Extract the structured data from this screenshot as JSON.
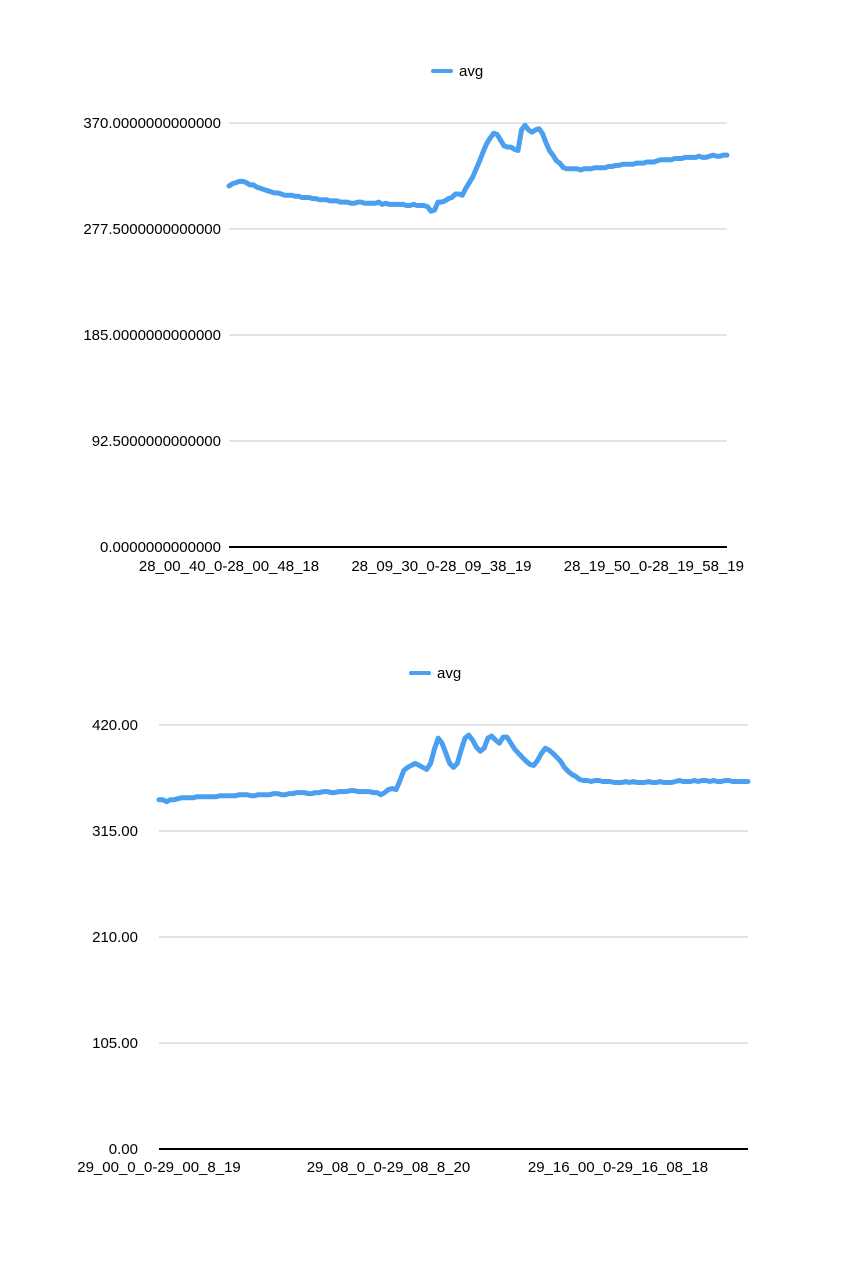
{
  "chart_data": [
    {
      "type": "line",
      "title": "",
      "xlabel": "",
      "ylabel": "",
      "legend": {
        "position": "top-center",
        "entries": [
          "avg"
        ]
      },
      "grid": true,
      "ylim": [
        0,
        370
      ],
      "yticks": [
        "0.0000000000000",
        "92.5000000000000",
        "185.0000000000000",
        "277.5000000000000",
        "370.0000000000000"
      ],
      "ytick_values": [
        0,
        92.5,
        185,
        277.5,
        370
      ],
      "xtick_labels": [
        "28_00_40_0-28_00_48_18",
        "28_09_30_0-28_09_38_19",
        "28_19_50_0-28_19_58_19"
      ],
      "xtick_index": [
        0,
        61,
        122
      ],
      "series": [
        {
          "name": "avg",
          "color": "#4a9ff0",
          "values": [
            315,
            317,
            318,
            319,
            319,
            318,
            316,
            316,
            314,
            313,
            312,
            311,
            310,
            309,
            309,
            308,
            307,
            307,
            307,
            306,
            306,
            305,
            305,
            305,
            304,
            304,
            303,
            303,
            303,
            302,
            302,
            302,
            301,
            301,
            301,
            300,
            300,
            301,
            301,
            300,
            300,
            300,
            300,
            301,
            299,
            300,
            299,
            299,
            299,
            299,
            299,
            298,
            298,
            299,
            298,
            298,
            298,
            297,
            293,
            294,
            301,
            301,
            302,
            304,
            305,
            308,
            308,
            307,
            313,
            318,
            323,
            330,
            337,
            345,
            352,
            357,
            361,
            360,
            355,
            350,
            349,
            349,
            347,
            346,
            364,
            368,
            364,
            362,
            364,
            365,
            361,
            353,
            346,
            342,
            337,
            335,
            331,
            330,
            330,
            330,
            330,
            329,
            330,
            330,
            330,
            331,
            331,
            331,
            331,
            332,
            332,
            333,
            333,
            334,
            334,
            334,
            334,
            335,
            335,
            335,
            336,
            336,
            336,
            337,
            338,
            338,
            338,
            338,
            339,
            339,
            339,
            340,
            340,
            340,
            340,
            341,
            340,
            340,
            341,
            342,
            341,
            341,
            342,
            342
          ]
        }
      ]
    },
    {
      "type": "line",
      "title": "",
      "xlabel": "",
      "ylabel": "",
      "legend": {
        "position": "top-center",
        "entries": [
          "avg"
        ]
      },
      "grid": true,
      "ylim": [
        0,
        420
      ],
      "yticks": [
        "0.00",
        "105.00",
        "210.00",
        "315.00",
        "420.00"
      ],
      "ytick_values": [
        0,
        105,
        210,
        315,
        420
      ],
      "xtick_labels": [
        "29_00_0_0-29_00_8_19",
        "29_08_0_0-29_08_8_20",
        "29_16_00_0-29_16_08_18"
      ],
      "xtick_index": [
        0,
        60,
        120
      ],
      "series": [
        {
          "name": "avg",
          "color": "#4a9ff0",
          "values": [
            346,
            346,
            344,
            346,
            346,
            347,
            348,
            348,
            348,
            348,
            349,
            349,
            349,
            349,
            349,
            349,
            350,
            350,
            350,
            350,
            350,
            351,
            351,
            351,
            350,
            350,
            351,
            351,
            351,
            351,
            352,
            352,
            351,
            351,
            352,
            352,
            353,
            353,
            353,
            352,
            352,
            353,
            353,
            354,
            354,
            353,
            353,
            354,
            354,
            354,
            355,
            355,
            354,
            354,
            354,
            354,
            353,
            353,
            351,
            353,
            356,
            357,
            356,
            365,
            375,
            378,
            380,
            382,
            380,
            378,
            376,
            382,
            396,
            407,
            402,
            392,
            382,
            378,
            382,
            395,
            407,
            410,
            405,
            398,
            394,
            397,
            407,
            409,
            405,
            402,
            408,
            408,
            402,
            396,
            392,
            388,
            384,
            381,
            380,
            385,
            392,
            397,
            395,
            392,
            388,
            384,
            378,
            374,
            371,
            369,
            366,
            365,
            365,
            364,
            365,
            365,
            364,
            364,
            364,
            363,
            363,
            363,
            364,
            363,
            364,
            363,
            363,
            363,
            364,
            363,
            363,
            364,
            363,
            363,
            363,
            364,
            365,
            364,
            364,
            364,
            365,
            364,
            365,
            365,
            364,
            365,
            364,
            364,
            365,
            365,
            364,
            364,
            364,
            364,
            364
          ]
        }
      ]
    }
  ]
}
